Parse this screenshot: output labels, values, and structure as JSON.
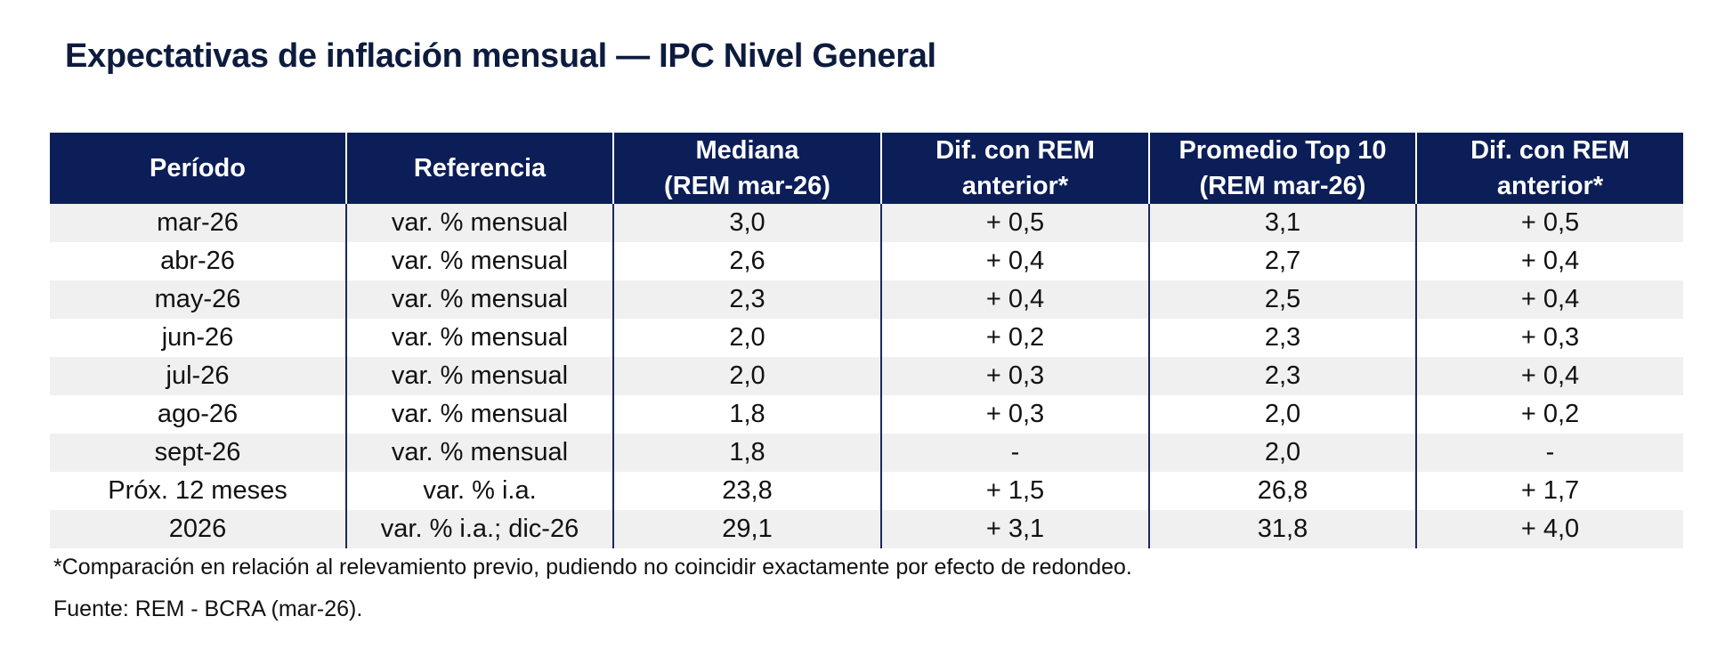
{
  "title": "Expectativas de inflación mensual — IPC Nivel General",
  "table": {
    "headers": [
      {
        "line1": "Período",
        "line2": ""
      },
      {
        "line1": "Referencia",
        "line2": ""
      },
      {
        "line1": "Mediana",
        "line2": "(REM mar-26)"
      },
      {
        "line1": "Dif. con REM",
        "line2": "anterior*"
      },
      {
        "line1": "Promedio Top 10",
        "line2": "(REM mar-26)"
      },
      {
        "line1": "Dif. con REM",
        "line2": "anterior*"
      }
    ],
    "rows": [
      [
        "mar-26",
        "var. % mensual",
        "3,0",
        "+ 0,5",
        "3,1",
        "+ 0,5"
      ],
      [
        "abr-26",
        "var. % mensual",
        "2,6",
        "+ 0,4",
        "2,7",
        "+ 0,4"
      ],
      [
        "may-26",
        "var. % mensual",
        "2,3",
        "+ 0,4",
        "2,5",
        "+ 0,4"
      ],
      [
        "jun-26",
        "var. % mensual",
        "2,0",
        "+ 0,2",
        "2,3",
        "+ 0,3"
      ],
      [
        "jul-26",
        "var. % mensual",
        "2,0",
        "+ 0,3",
        "2,3",
        "+ 0,4"
      ],
      [
        "ago-26",
        "var. % mensual",
        "1,8",
        "+ 0,3",
        "2,0",
        "+ 0,2"
      ],
      [
        "sept-26",
        "var. % mensual",
        "1,8",
        "-",
        "2,0",
        "-"
      ],
      [
        "Próx. 12 meses",
        "var. % i.a.",
        "23,8",
        "+ 1,5",
        "26,8",
        "+ 1,7"
      ],
      [
        "2026",
        "var. % i.a.; dic-26",
        "29,1",
        "+ 3,1",
        "31,8",
        "+ 4,0"
      ]
    ]
  },
  "footnote": "*Comparación en relación al relevamiento previo, pudiendo no coincidir exactamente por efecto de redondeo.",
  "source": "Fuente: REM - BCRA (mar-26).",
  "colors": {
    "header_bg": "#0c1e58",
    "header_text": "#ffffff",
    "row_shaded": "#f0f0f0",
    "title_text": "#0d1b3d"
  }
}
